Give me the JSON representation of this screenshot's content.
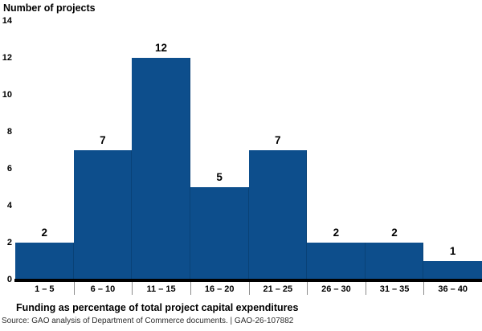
{
  "chart_data": {
    "type": "bar",
    "title": "Number of projects",
    "ylabel": "Number of projects",
    "xlabel": "Funding as percentage of total project capital expenditures",
    "categories": [
      "1 – 5",
      "6 – 10",
      "11 – 15",
      "16 – 20",
      "21 – 25",
      "26 – 30",
      "31 – 35",
      "36 – 40"
    ],
    "values": [
      2,
      7,
      12,
      5,
      7,
      2,
      2,
      1
    ],
    "ylim": [
      0,
      14
    ],
    "yticks": [
      0,
      2,
      4,
      6,
      8,
      10,
      12,
      14
    ],
    "grid": false,
    "legend": "none",
    "bar_color": "#0d4e8c",
    "baseline_color": "#000000",
    "tick_color": "#8c8c8c",
    "source": "Source: GAO analysis of Department of Commerce documents.  |  GAO-26-107882"
  }
}
